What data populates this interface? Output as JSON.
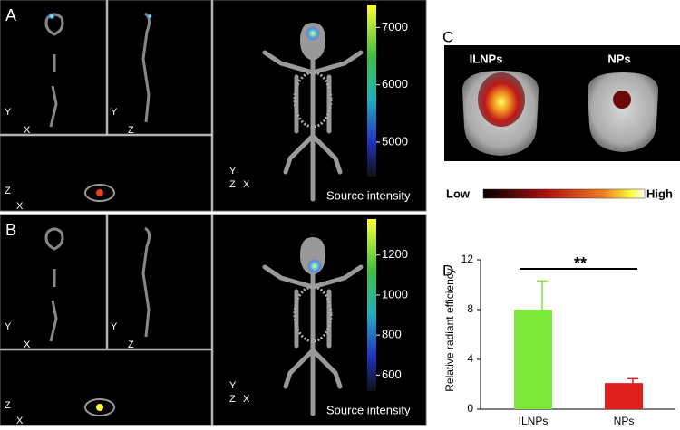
{
  "panels": {
    "A": {
      "letter": "A",
      "view_axes": [
        [
          "Y",
          "X"
        ],
        [
          "Y",
          "Z"
        ],
        [
          "Z",
          "X"
        ],
        [
          "Y",
          "Z",
          "X"
        ]
      ],
      "colorbar": {
        "label": "Source intensity",
        "ylim": [
          4400,
          7400
        ],
        "yticks": [
          5000,
          6000,
          7000
        ]
      }
    },
    "B": {
      "letter": "B",
      "view_axes": [
        [
          "Y",
          "X"
        ],
        [
          "Y",
          "Z"
        ],
        [
          "Z",
          "X"
        ],
        [
          "Y",
          "Z",
          "X"
        ]
      ],
      "colorbar": {
        "label": "Source intensity",
        "ylim": [
          520,
          1380
        ],
        "yticks": [
          600,
          800,
          1000,
          1200
        ]
      }
    },
    "C": {
      "letter": "C",
      "groups": [
        "ILNPs",
        "NPs"
      ],
      "scale": [
        "Low",
        "High"
      ]
    },
    "D": {
      "letter": "D"
    }
  },
  "chart_data": {
    "type": "bar",
    "ylabel": "Relative radiant efficiency",
    "categories": [
      "ILNPs",
      "NPs"
    ],
    "values": [
      8,
      2.1
    ],
    "errors": [
      2.3,
      0.35
    ],
    "colors": [
      "#7ee83a",
      "#e0201c"
    ],
    "ylim": [
      0,
      12
    ],
    "yticks": [
      0,
      4,
      8,
      12
    ],
    "annotation": "**"
  }
}
